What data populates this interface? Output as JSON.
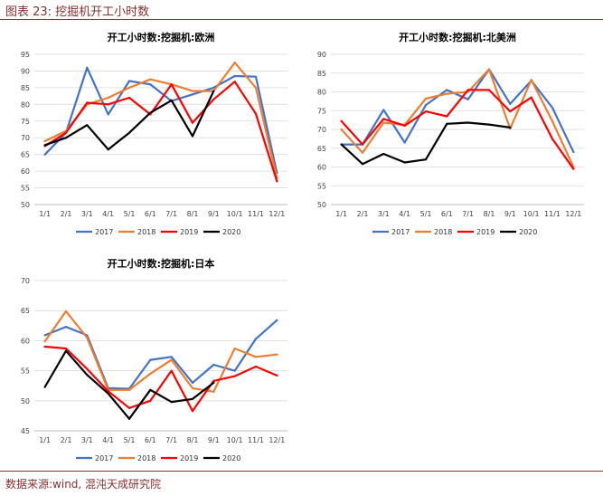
{
  "figure": {
    "title": "图表 23:  挖掘机开工小时数",
    "source": "数据来源:wind, 混沌天成研究院"
  },
  "colors": {
    "2017": "#4472c4",
    "2018": "#ed7d31",
    "2019": "#ff0000",
    "2020": "#000000",
    "accent": "#8b2e2e",
    "grid": "#d9d9d9"
  },
  "chart_data": [
    {
      "type": "line",
      "title": "开工小时数:挖掘机:欧洲",
      "categories": [
        "1/1",
        "2/1",
        "3/1",
        "4/1",
        "5/1",
        "6/1",
        "7/1",
        "8/1",
        "9/1",
        "10/1",
        "11/1",
        "12/1"
      ],
      "ylim": [
        50,
        95
      ],
      "yticks": [
        50,
        55,
        60,
        65,
        70,
        75,
        80,
        85,
        90,
        95
      ],
      "grid": true,
      "legend": "bottom",
      "series": [
        {
          "name": "2017",
          "values": [
            65,
            71.5,
            91,
            77,
            87,
            86,
            81,
            83,
            85,
            88.5,
            88.3,
            59.5
          ]
        },
        {
          "name": "2018",
          "values": [
            69,
            72,
            80,
            82,
            85,
            87.5,
            86,
            84,
            84,
            92.5,
            85,
            58
          ]
        },
        {
          "name": "2019",
          "values": [
            67.5,
            71.5,
            80.5,
            80,
            82,
            77,
            86,
            74.5,
            81.5,
            86.8,
            77.2,
            57
          ]
        },
        {
          "name": "2020",
          "values": [
            67.8,
            70,
            73.8,
            66.5,
            71.5,
            77.5,
            81.2,
            70.5,
            84,
            null,
            null,
            null
          ]
        }
      ]
    },
    {
      "type": "line",
      "title": "开工小时数:挖掘机:北美洲",
      "categories": [
        "1/1",
        "2/1",
        "3/1",
        "4/1",
        "5/1",
        "6/1",
        "7/1",
        "8/1",
        "9/1",
        "10/1",
        "11/1",
        "12/1"
      ],
      "ylim": [
        50,
        90
      ],
      "yticks": [
        50,
        55,
        60,
        65,
        70,
        75,
        80,
        85,
        90
      ],
      "grid": true,
      "legend": "bottom",
      "series": [
        {
          "name": "2017",
          "values": [
            66,
            66,
            75.2,
            66.5,
            76.5,
            80.5,
            78,
            86,
            76.8,
            83,
            75.8,
            64
          ]
        },
        {
          "name": "2018",
          "values": [
            70,
            63.8,
            71.8,
            71.2,
            78.2,
            79.5,
            80,
            86,
            70.2,
            83.2,
            72.2,
            60
          ]
        },
        {
          "name": "2019",
          "values": [
            72.2,
            66,
            72.8,
            71,
            74.8,
            73.5,
            80.5,
            80.5,
            74.8,
            78.5,
            67.5,
            59.5
          ]
        },
        {
          "name": "2020",
          "values": [
            66,
            60.8,
            63.5,
            61.2,
            62,
            71.5,
            71.8,
            71.3,
            70.5,
            null,
            null,
            null
          ]
        }
      ]
    },
    {
      "type": "line",
      "title": "开工小时数:挖掘机:日本",
      "categories": [
        "1/1",
        "2/1",
        "3/1",
        "4/1",
        "5/1",
        "6/1",
        "7/1",
        "8/1",
        "9/1",
        "10/1",
        "11/1",
        "12/1"
      ],
      "ylim": [
        45,
        70
      ],
      "yticks": [
        45,
        50,
        55,
        60,
        65,
        70
      ],
      "grid": true,
      "legend": "bottom",
      "series": [
        {
          "name": "2017",
          "values": [
            60.9,
            62.3,
            60.9,
            52.1,
            52,
            56.8,
            57.3,
            53,
            56,
            55,
            60.3,
            63.4
          ]
        },
        {
          "name": "2018",
          "values": [
            59.9,
            64.9,
            60.5,
            51.8,
            51.8,
            54.5,
            56.8,
            52.1,
            51.5,
            58.7,
            57.3,
            57.7
          ]
        },
        {
          "name": "2019",
          "values": [
            59,
            58.7,
            55.3,
            51.6,
            48.8,
            50,
            55,
            48.3,
            53.3,
            54.1,
            55.7,
            54.2
          ]
        },
        {
          "name": "2020",
          "values": [
            52.3,
            58.3,
            54.3,
            51.2,
            47,
            51.8,
            49.8,
            50.3,
            53,
            null,
            null,
            null
          ]
        }
      ]
    }
  ]
}
